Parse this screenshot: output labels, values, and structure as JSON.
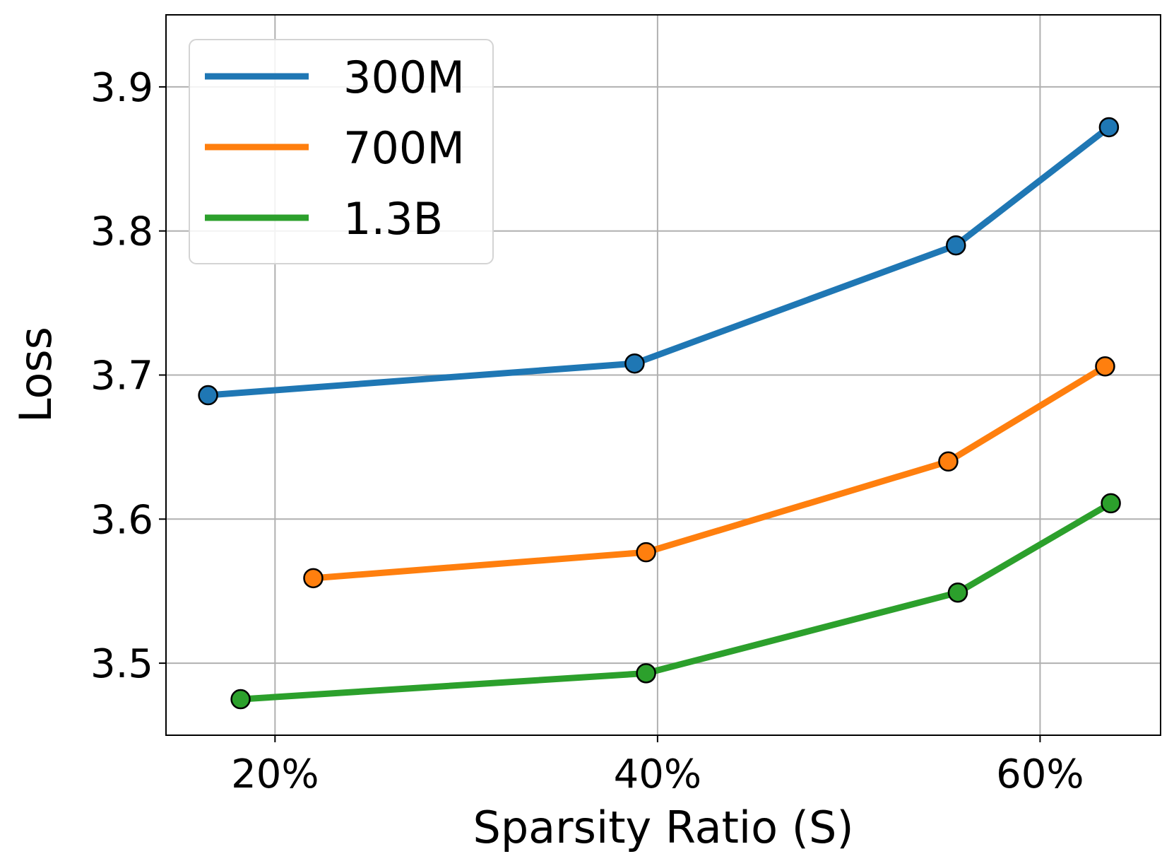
{
  "chart_data": {
    "type": "line",
    "title": "",
    "xlabel": "Sparsity Ratio (S)",
    "ylabel": "Loss",
    "xlim": [
      14.3,
      66.3
    ],
    "ylim": [
      3.45,
      3.95
    ],
    "xticks": [
      20,
      40,
      60
    ],
    "xtick_labels": [
      "20%",
      "40%",
      "60%"
    ],
    "yticks": [
      3.5,
      3.6,
      3.7,
      3.8,
      3.9
    ],
    "ytick_labels": [
      "3.5",
      "3.6",
      "3.7",
      "3.8",
      "3.9"
    ],
    "grid": true,
    "legend": "top-left",
    "series": [
      {
        "name": "300M",
        "color": "#1f77b4",
        "x": [
          16.5,
          38.8,
          55.6,
          63.6
        ],
        "y": [
          3.686,
          3.708,
          3.79,
          3.872
        ]
      },
      {
        "name": "700M",
        "color": "#ff7f0e",
        "x": [
          22.0,
          39.4,
          55.2,
          63.4
        ],
        "y": [
          3.559,
          3.577,
          3.64,
          3.706
        ]
      },
      {
        "name": "1.3B",
        "color": "#2ca02c",
        "x": [
          18.2,
          39.4,
          55.7,
          63.7
        ],
        "y": [
          3.475,
          3.493,
          3.549,
          3.611
        ]
      }
    ]
  }
}
